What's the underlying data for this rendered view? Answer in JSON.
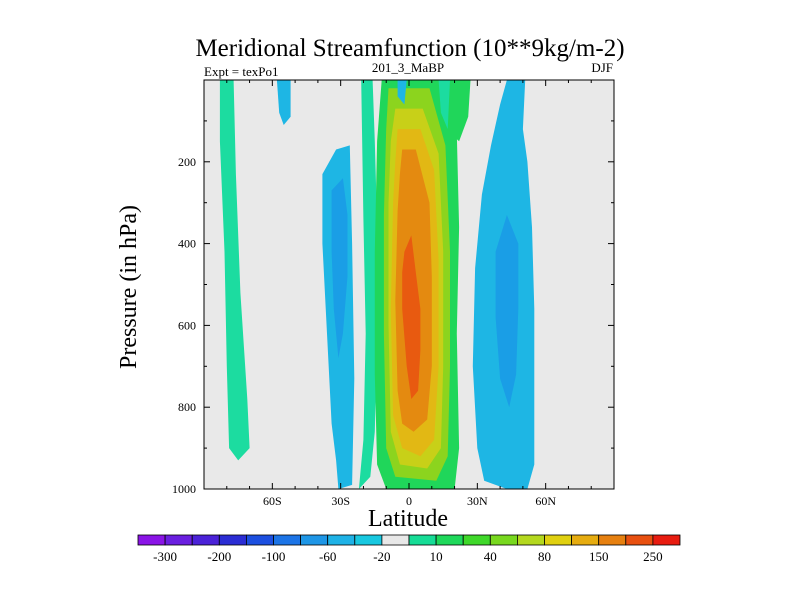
{
  "chart_data": {
    "type": "contour",
    "title": "Meridional Streamfunction (10**9kg/m-2)",
    "left_label": "Expt = texPo1",
    "center_label": "201_3_MaBP",
    "right_label": "DJF",
    "xlabel": "Latitude",
    "ylabel": "Pressure (in hPa)",
    "xlim": [
      -90,
      90
    ],
    "ylim": [
      1000,
      0
    ],
    "y_inverted": true,
    "x_ticks": [
      {
        "value": -60,
        "label": "60S"
      },
      {
        "value": -30,
        "label": "30S"
      },
      {
        "value": 0,
        "label": "0"
      },
      {
        "value": 30,
        "label": "30N"
      },
      {
        "value": 60,
        "label": "60N"
      }
    ],
    "y_ticks": [
      {
        "value": 200,
        "label": "200"
      },
      {
        "value": 400,
        "label": "400"
      },
      {
        "value": 600,
        "label": "600"
      },
      {
        "value": 800,
        "label": "800"
      },
      {
        "value": 1000,
        "label": "1000"
      }
    ],
    "colorbar": {
      "colors": [
        "#8a14e6",
        "#6a1fe0",
        "#4b22d8",
        "#2b2dd4",
        "#1c4fe0",
        "#1c74e6",
        "#1e96e6",
        "#1eb2e6",
        "#18c8e0",
        "#e8e8e8",
        "#16dc96",
        "#1ed85a",
        "#3fd82a",
        "#78d81e",
        "#b4d81e",
        "#e0d010",
        "#e6ac10",
        "#e68010",
        "#e85010",
        "#e81c10"
      ],
      "labels": [
        "-300",
        "-200",
        "-100",
        "-60",
        "-20",
        "10",
        "40",
        "80",
        "150",
        "250"
      ],
      "label_boundaries": [
        1,
        3,
        5,
        7,
        9,
        11,
        13,
        15,
        17,
        19
      ]
    },
    "regions": [
      {
        "level": "10",
        "color": "#1cdca0",
        "points": [
          [
            -83,
            0
          ],
          [
            -77,
            0
          ],
          [
            -76,
            230
          ],
          [
            -74,
            520
          ],
          [
            -71,
            780
          ],
          [
            -70,
            900
          ],
          [
            -75,
            930
          ],
          [
            -79,
            900
          ],
          [
            -80,
            700
          ],
          [
            -81,
            420
          ],
          [
            -83,
            150
          ]
        ]
      },
      {
        "level": "-20",
        "color": "#1eb6e4",
        "points": [
          [
            -58,
            0
          ],
          [
            -52,
            0
          ],
          [
            -52,
            90
          ],
          [
            -55,
            110
          ],
          [
            -57,
            80
          ]
        ]
      },
      {
        "level": "-20",
        "color": "#1eb6e4",
        "points": [
          [
            -38,
            230
          ],
          [
            -32,
            170
          ],
          [
            -26,
            160
          ],
          [
            -25,
            400
          ],
          [
            -24,
            730
          ],
          [
            -25,
            990
          ],
          [
            -31,
            1000
          ],
          [
            -32,
            930
          ],
          [
            -34,
            840
          ],
          [
            -36,
            620
          ],
          [
            -38,
            400
          ]
        ]
      },
      {
        "level": "-60",
        "color": "#1a9ee6",
        "points": [
          [
            -34,
            270
          ],
          [
            -29,
            240
          ],
          [
            -27,
            330
          ],
          [
            -27,
            480
          ],
          [
            -29,
            620
          ],
          [
            -31,
            680
          ],
          [
            -33,
            560
          ],
          [
            -34,
            420
          ]
        ]
      },
      {
        "level": "10",
        "color": "#1cdca0",
        "points": [
          [
            -21,
            0
          ],
          [
            -16,
            0
          ],
          [
            -15,
            150
          ],
          [
            -14,
            350
          ],
          [
            -14,
            620
          ],
          [
            -15,
            860
          ],
          [
            -17,
            970
          ],
          [
            -22,
            1000
          ],
          [
            -20,
            880
          ],
          [
            -19,
            620
          ],
          [
            -20,
            340
          ]
        ]
      },
      {
        "level": "40",
        "color": "#20d65a",
        "points": [
          [
            -12,
            0
          ],
          [
            15,
            0
          ],
          [
            21,
            130
          ],
          [
            22,
            360
          ],
          [
            21,
            620
          ],
          [
            22,
            900
          ],
          [
            20,
            1000
          ],
          [
            -10,
            1000
          ],
          [
            -14,
            940
          ],
          [
            -15,
            720
          ],
          [
            -15,
            420
          ],
          [
            -14,
            150
          ]
        ]
      },
      {
        "level": "40",
        "color": "#20d65a",
        "points": [
          [
            17,
            0
          ],
          [
            27,
            0
          ],
          [
            26,
            90
          ],
          [
            22,
            150
          ],
          [
            18,
            130
          ]
        ]
      },
      {
        "level": "10",
        "color": "#1cdca0",
        "points": [
          [
            13,
            0
          ],
          [
            18,
            0
          ],
          [
            17,
            120
          ],
          [
            14,
            80
          ]
        ]
      },
      {
        "level": "80",
        "color": "#8cd41e",
        "points": [
          [
            -9,
            20
          ],
          [
            9,
            20
          ],
          [
            16,
            160
          ],
          [
            18,
            420
          ],
          [
            18,
            700
          ],
          [
            17,
            920
          ],
          [
            12,
            980
          ],
          [
            -6,
            970
          ],
          [
            -10,
            900
          ],
          [
            -11,
            620
          ],
          [
            -11,
            330
          ],
          [
            -10,
            120
          ]
        ]
      },
      {
        "level": "100",
        "color": "#c8d018",
        "points": [
          [
            -6,
            70
          ],
          [
            6,
            70
          ],
          [
            13,
            180
          ],
          [
            15,
            420
          ],
          [
            15,
            700
          ],
          [
            14,
            900
          ],
          [
            8,
            950
          ],
          [
            -4,
            940
          ],
          [
            -8,
            860
          ],
          [
            -9,
            600
          ],
          [
            -9,
            300
          ],
          [
            -8,
            150
          ]
        ]
      },
      {
        "level": "120",
        "color": "#e2b814",
        "points": [
          [
            -5,
            120
          ],
          [
            5,
            120
          ],
          [
            11,
            220
          ],
          [
            13,
            440
          ],
          [
            13,
            700
          ],
          [
            11,
            880
          ],
          [
            5,
            920
          ],
          [
            -3,
            900
          ],
          [
            -7,
            820
          ],
          [
            -8,
            560
          ],
          [
            -7,
            300
          ],
          [
            -6,
            200
          ]
        ]
      },
      {
        "level": "150",
        "color": "#e48a10",
        "points": [
          [
            -3,
            170
          ],
          [
            3,
            170
          ],
          [
            9,
            300
          ],
          [
            10,
            480
          ],
          [
            10,
            700
          ],
          [
            8,
            830
          ],
          [
            2,
            860
          ],
          [
            -3,
            840
          ],
          [
            -5,
            760
          ],
          [
            -6,
            540
          ],
          [
            -5,
            320
          ],
          [
            -4,
            230
          ]
        ]
      },
      {
        "level": "200",
        "color": "#e85a10",
        "points": [
          [
            -2,
            420
          ],
          [
            1,
            380
          ],
          [
            3,
            470
          ],
          [
            5,
            560
          ],
          [
            5,
            660
          ],
          [
            4,
            760
          ],
          [
            1,
            780
          ],
          [
            -1,
            700
          ],
          [
            -3,
            560
          ],
          [
            -3,
            470
          ]
        ]
      },
      {
        "level": "-20",
        "color": "#1eb6e4",
        "points": [
          [
            43,
            0
          ],
          [
            51,
            0
          ],
          [
            50,
            120
          ],
          [
            52,
            200
          ],
          [
            54,
            360
          ],
          [
            55,
            560
          ],
          [
            55,
            800
          ],
          [
            55,
            940
          ],
          [
            52,
            1000
          ],
          [
            43,
            1000
          ],
          [
            33,
            980
          ],
          [
            30,
            900
          ],
          [
            28,
            700
          ],
          [
            29,
            460
          ],
          [
            32,
            280
          ],
          [
            36,
            160
          ],
          [
            40,
            60
          ]
        ]
      },
      {
        "level": "-60",
        "color": "#1a9ee6",
        "points": [
          [
            38,
            420
          ],
          [
            43,
            330
          ],
          [
            48,
            400
          ],
          [
            48,
            560
          ],
          [
            47,
            720
          ],
          [
            44,
            800
          ],
          [
            40,
            730
          ],
          [
            38,
            580
          ]
        ]
      },
      {
        "level": "-20",
        "color": "#1eb6e4",
        "points": [
          [
            -5,
            0
          ],
          [
            -1,
            0
          ],
          [
            -2,
            60
          ],
          [
            -5,
            40
          ]
        ]
      }
    ]
  }
}
